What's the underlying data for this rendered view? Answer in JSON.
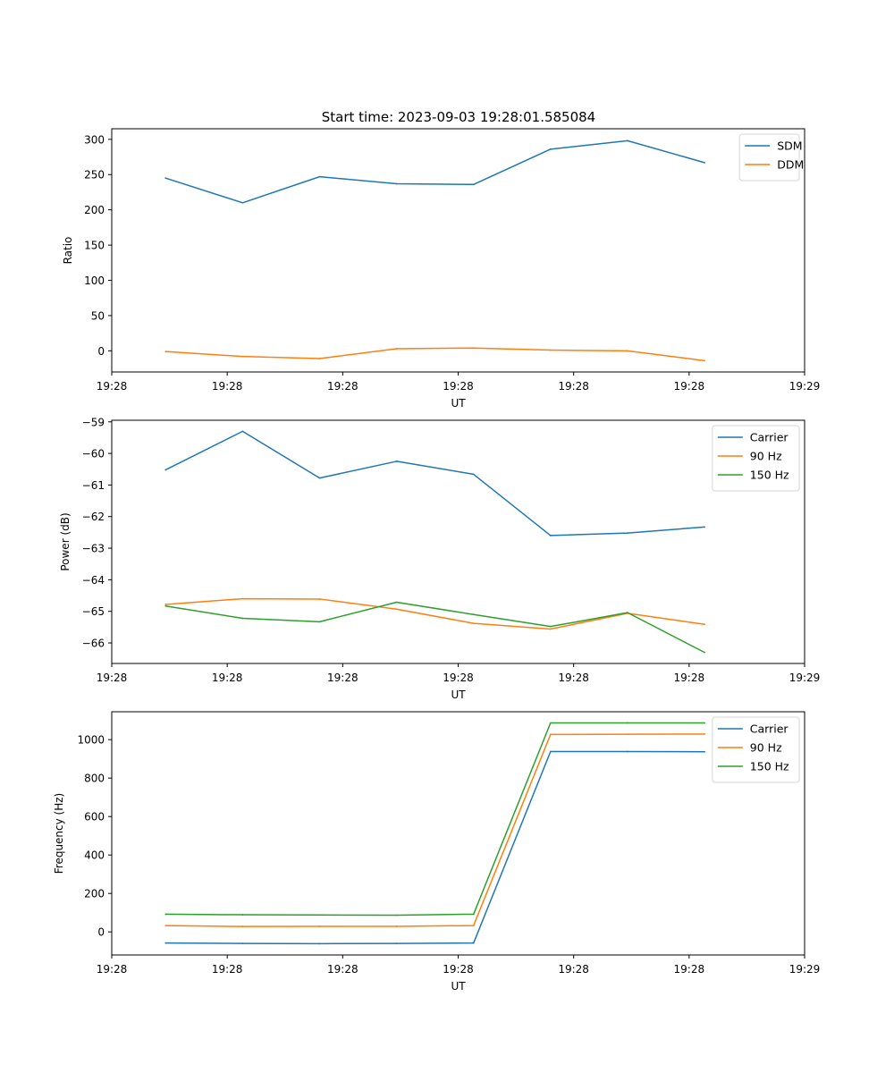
{
  "title": "Start time: 2023-09-03 19:28:01.585084",
  "colors": {
    "blue": "#1f77b4",
    "orange": "#ff7f0e",
    "green": "#2ca02c"
  },
  "chart_data": [
    {
      "type": "line",
      "xlabel": "UT",
      "ylabel": "Ratio",
      "x": [
        1,
        2,
        3,
        4,
        5,
        6,
        7,
        8
      ],
      "xlim": [
        0.3,
        9.3
      ],
      "x_ticks": [
        0.3,
        1.8,
        3.3,
        4.8,
        6.3,
        7.8,
        9.3
      ],
      "x_tick_labels": [
        "19:28",
        "19:28",
        "19:28",
        "19:28",
        "19:28",
        "19:28",
        "19:29"
      ],
      "ylim": [
        -30,
        315
      ],
      "y_ticks": [
        0,
        50,
        100,
        150,
        200,
        250,
        300
      ],
      "y_tick_labels": [
        "0",
        "50",
        "100",
        "150",
        "200",
        "250",
        "300"
      ],
      "legend": "top-right",
      "series": [
        {
          "name": "SDM",
          "color": "#1f77b4",
          "values": [
            245,
            210,
            247,
            237,
            236,
            286,
            298,
            267
          ]
        },
        {
          "name": "DDM",
          "color": "#ff7f0e",
          "values": [
            -1,
            -8,
            -11,
            3,
            4,
            1,
            0,
            -14
          ]
        }
      ]
    },
    {
      "type": "line",
      "xlabel": "UT",
      "ylabel": "Power (dB)",
      "x": [
        1,
        2,
        3,
        4,
        5,
        6,
        7,
        8
      ],
      "xlim": [
        0.3,
        9.3
      ],
      "x_ticks": [
        0.3,
        1.8,
        3.3,
        4.8,
        6.3,
        7.8,
        9.3
      ],
      "x_tick_labels": [
        "19:28",
        "19:28",
        "19:28",
        "19:28",
        "19:28",
        "19:28",
        "19:29"
      ],
      "ylim": [
        -66.65,
        -58.95
      ],
      "y_ticks": [
        -66,
        -65,
        -64,
        -63,
        -62,
        -61,
        -60,
        -59
      ],
      "y_tick_labels": [
        "−66",
        "−65",
        "−64",
        "−63",
        "−62",
        "−61",
        "−60",
        "−59"
      ],
      "legend": "top-right",
      "series": [
        {
          "name": "Carrier",
          "color": "#1f77b4",
          "values": [
            -60.52,
            -59.3,
            -60.78,
            -60.25,
            -60.66,
            -62.6,
            -62.52,
            -62.33
          ]
        },
        {
          "name": "90 Hz",
          "color": "#ff7f0e",
          "values": [
            -64.78,
            -64.6,
            -64.61,
            -64.93,
            -65.38,
            -65.56,
            -65.06,
            -65.41
          ]
        },
        {
          "name": "150 Hz",
          "color": "#2ca02c",
          "values": [
            -64.83,
            -65.22,
            -65.33,
            -64.71,
            -65.1,
            -65.48,
            -65.04,
            -66.3
          ]
        }
      ]
    },
    {
      "type": "line",
      "xlabel": "UT",
      "ylabel": "Frequency (Hz)",
      "x": [
        1,
        2,
        3,
        4,
        5,
        6,
        7,
        8
      ],
      "xlim": [
        0.3,
        9.3
      ],
      "x_ticks": [
        0.3,
        1.8,
        3.3,
        4.8,
        6.3,
        7.8,
        9.3
      ],
      "x_tick_labels": [
        "19:28",
        "19:28",
        "19:28",
        "19:28",
        "19:28",
        "19:28",
        "19:29"
      ],
      "ylim": [
        -120,
        1145
      ],
      "y_ticks": [
        0,
        200,
        400,
        600,
        800,
        1000
      ],
      "y_tick_labels": [
        "0",
        "200",
        "400",
        "600",
        "800",
        "1000"
      ],
      "legend": "top-right",
      "series": [
        {
          "name": "Carrier",
          "color": "#1f77b4",
          "values": [
            -58,
            -60,
            -61,
            -60,
            -58,
            938,
            938,
            937
          ]
        },
        {
          "name": "90 Hz",
          "color": "#ff7f0e",
          "values": [
            33,
            28,
            29,
            29,
            33,
            1027,
            1028,
            1029
          ]
        },
        {
          "name": "150 Hz",
          "color": "#2ca02c",
          "values": [
            92,
            89,
            88,
            87,
            92,
            1087,
            1087,
            1087
          ]
        }
      ]
    }
  ]
}
